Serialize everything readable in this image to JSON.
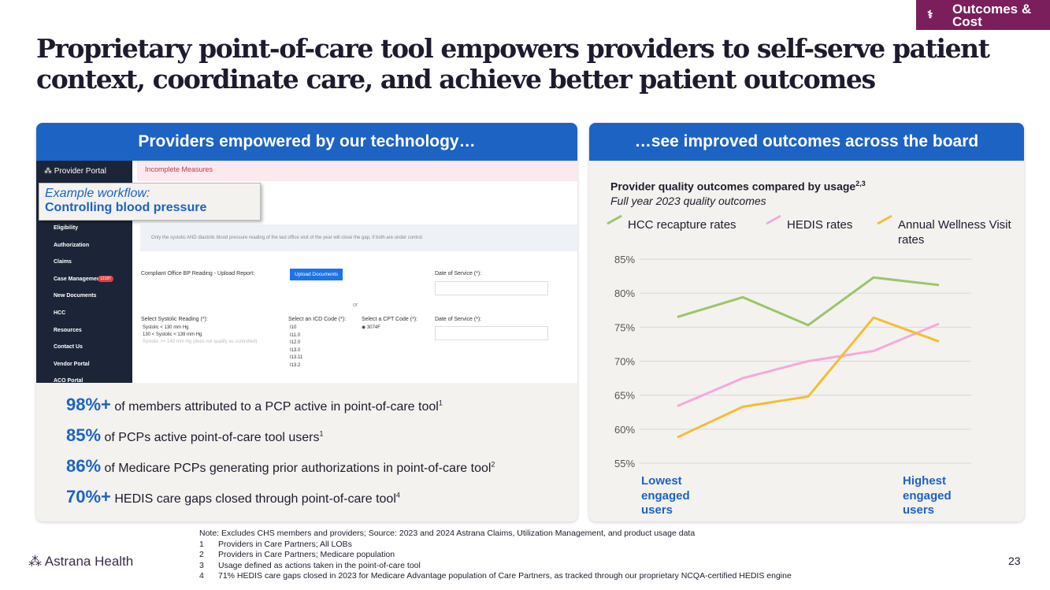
{
  "badge": "Outcomes & Cost",
  "title": "Proprietary point-of-care tool empowers providers to self-serve patient context, coordinate care, and achieve better patient outcomes",
  "left_panel": {
    "header": "Providers empowered by our technology…",
    "portal": {
      "brand": "Provider Portal",
      "menu": [
        "Eligibility",
        "Authorization",
        "Claims",
        "Case Management",
        "New Documents",
        "HCC",
        "Resources",
        "Contact Us",
        "Vendor Portal",
        "ACO Portal"
      ],
      "case_badge": "12187",
      "banner": "Incomplete Measures",
      "info": "Only the systolic AND diastolic blood pressure reading of the last office visit of the year will close the gap, if both are under control.",
      "upload_label": "Compliant Office BP Reading - Upload Report:",
      "upload_button": "Upload Documents",
      "date_label": "Date of Service (*):",
      "or": "or",
      "systolic_label": "Select Systolic Reading (*):",
      "systolic_options": [
        "Systolic < 130 mm Hg",
        "130 < Systolic < 139 mm Hg",
        "Systolic >= 140 mm Hg (does not qualify as controlled)"
      ],
      "icd_label": "Select an ICD Code (*):",
      "icd_options": [
        "I10",
        "I11.0",
        "I12.0",
        "I13.0",
        "I13.11",
        "I13.2"
      ],
      "cpt_label": "Select a CPT Code (*):",
      "cpt_option": "3074F",
      "date_label_2": "Date of Service (*):"
    },
    "callout": {
      "line1": "Example workflow:",
      "line2": "Controlling blood pressure"
    },
    "stats": [
      {
        "value": "98%+",
        "text": "of members attributed to a PCP active in point-of-care tool",
        "note": "1"
      },
      {
        "value": "85%",
        "text": "of PCPs active point-of-care tool users",
        "note": "1"
      },
      {
        "value": "86%",
        "text": "of Medicare PCPs generating prior authorizations in point-of-care tool",
        "note": "2"
      },
      {
        "value": "70%+",
        "text": "HEDIS care gaps closed through point-of-care tool",
        "note": "4"
      }
    ]
  },
  "right_panel": {
    "header": "…see improved outcomes across the board"
  },
  "chart_data": {
    "type": "line",
    "title": "Provider quality outcomes compared by usage",
    "title_note": "2,3",
    "subtitle": "Full year 2023 quality outcomes",
    "categories": [
      "Lowest engaged users",
      null,
      null,
      null,
      "Highest engaged users"
    ],
    "series": [
      {
        "name": "HCC recapture rates",
        "color": "#9cc46c",
        "values": [
          76.5,
          79.4,
          75.3,
          82.3,
          81.2
        ]
      },
      {
        "name": "HEDIS rates",
        "color": "#f6a9dc",
        "values": [
          63.4,
          67.5,
          70.0,
          71.5,
          75.5
        ]
      },
      {
        "name": "Annual Wellness Visit rates",
        "color": "#f5bd36",
        "values": [
          58.8,
          63.3,
          64.8,
          76.4,
          72.9
        ]
      }
    ],
    "ylim": [
      55,
      85
    ],
    "yticks": [
      {
        "value": 55,
        "label": "55%"
      },
      {
        "value": 60,
        "label": "60%"
      },
      {
        "value": 65,
        "label": "65%"
      },
      {
        "value": 70,
        "label": "70%"
      },
      {
        "value": 75,
        "label": "75%"
      },
      {
        "value": 80,
        "label": "80%"
      },
      {
        "value": 85,
        "label": "85%"
      }
    ],
    "grid": true,
    "legend": "top"
  },
  "notes": {
    "note": "Note: Excludes CHS members and providers; Source: 2023 and 2024 Astrana Claims, Utilization Management, and product usage data",
    "items": [
      {
        "n": "1",
        "text": "Providers in Care Partners; All LOBs"
      },
      {
        "n": "2",
        "text": "Providers in Care Partners; Medicare population"
      },
      {
        "n": "3",
        "text": "Usage defined as actions taken in the point-of-care tool"
      },
      {
        "n": "4",
        "text": "71% HEDIS care gaps closed in 2023 for Medicare Advantage population of Care Partners, as tracked through our proprietary NCQA-certified HEDIS engine"
      }
    ]
  },
  "footer": {
    "logo": "Astrana Health",
    "page": "23"
  }
}
